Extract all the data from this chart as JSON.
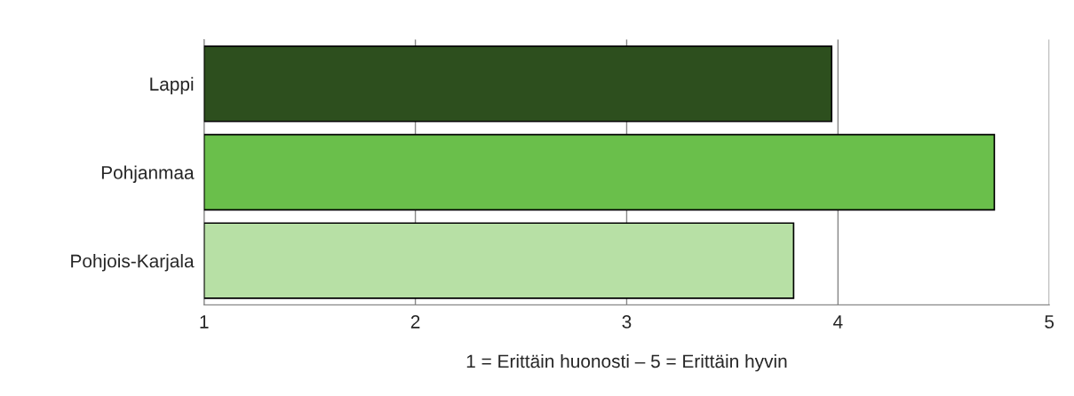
{
  "chart_data": {
    "type": "bar",
    "orientation": "horizontal",
    "categories": [
      "Lappi",
      "Pohjanmaa",
      "Pohjois-Karjala"
    ],
    "values": [
      3.97,
      4.74,
      3.79
    ],
    "colors": [
      "#2d4f1e",
      "#6abf4b",
      "#b7e0a5"
    ],
    "xlim": [
      1,
      5
    ],
    "xticks": [
      1,
      2,
      3,
      4,
      5
    ],
    "xlabel": "1 = Erittäin huonosti – 5 = Erittäin hyvin",
    "grid": "x"
  }
}
